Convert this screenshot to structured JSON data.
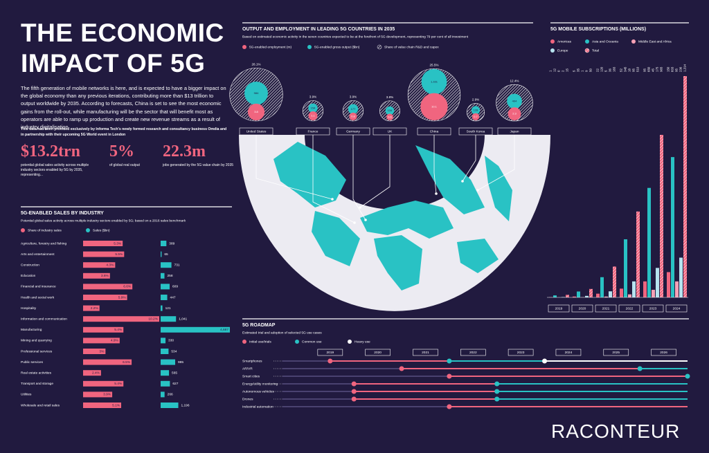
{
  "header": {
    "title": "THE ECONOMIC IMPACT OF 5G",
    "intro": "The fifth generation of mobile networks is here, and is expected to have a bigger impact on the global economy than any previous iterations, contributing more than $13 trillion to output worldwide by 2035. According to forecasts, China is set to see the most economic gains from the roll-out, while manufacturing will be the sector that will benefit most as operators are able to ramp up production and create new revenue streams as a result of industry digitalisation",
    "source": "This data had been provided exclusively by Informa Tech's newly formed research and consultancy business Omdia and in partnership with their upcoming 5G World event in London"
  },
  "stats": [
    {
      "figure": "$13.2trn",
      "label": "potential global sales activity across multiple industry sectors enabled by 5G by 2035, representing..."
    },
    {
      "figure": "5%",
      "label": "of global real output"
    },
    {
      "figure": "22.3m",
      "label": "jobs generated by the 5G value chain by 2035"
    }
  ],
  "chart_data": [
    {
      "type": "bar",
      "orientation": "horizontal",
      "title": "5G-ENABLED SALES BY INDUSTRY",
      "subtitle": "Potential global sales activity across multiple industry sectors enabled by 5G; based on a 2016 sales benchmark",
      "categories": [
        "Agriculture, forestry and fishing",
        "Arts and entertainment",
        "Construction",
        "Education",
        "Financial and insurance",
        "Health and social work",
        "Hospitality",
        "Information and communication",
        "Manufacturing",
        "Mining and quarrying",
        "Professional services",
        "Public services",
        "Real estate activities",
        "Transport and storage",
        "Utilities",
        "Wholesale and retail sales"
      ],
      "series": [
        {
          "name": "Share of industry sales",
          "color": "#f0657f",
          "values": [
            5.3,
            5.5,
            4.3,
            3.6,
            6.6,
            5.9,
            2.2,
            10.2,
            5.4,
            4.9,
            3,
            6.5,
            2.4,
            5.4,
            3.9,
            5.1
          ],
          "value_labels": [
            "5.3%",
            "5.5%",
            "4.3%",
            "3.6%",
            "6.6%",
            "5.9%",
            "2.2%",
            "10.2%",
            "5.4%",
            "4.9%",
            "3%",
            "6.5%",
            "2.4%",
            "5.4%",
            "3.9%",
            "5.1%"
          ]
        },
        {
          "name": "Sales ($bn)",
          "color": "#29c2c4",
          "values": [
            389,
            65,
            731,
            258,
            609,
            447,
            121,
            1041,
            4687,
            330,
            534,
            985,
            565,
            627,
            266,
            1196
          ],
          "value_labels": [
            "389",
            "65",
            "731",
            "258",
            "609",
            "447",
            "121",
            "1,041",
            "4,687",
            "330",
            "534",
            "985",
            "565",
            "627",
            "266",
            "1,196"
          ]
        }
      ]
    },
    {
      "type": "bubble",
      "title": "OUTPUT AND EMPLOYMENT IN LEADING 5G COUNTRIES IN 2035",
      "subtitle": "Based on estimated economic activity in the seven countries expected to be at the forefront of 5G development, representing 79 per cent of all investment",
      "categories": [
        "United States",
        "France",
        "Germany",
        "UK",
        "China",
        "South Korea",
        "Japan"
      ],
      "series": [
        {
          "name": "5G-enabled employment (m)",
          "color": "#f0657f",
          "values": [
            3.8,
            1.1,
            0.8,
            0.6,
            10.1,
            0.7,
            2.3
          ]
        },
        {
          "name": "5G-enabled gross output ($bn)",
          "color": "#29c2c4",
          "values": [
            984,
            154,
            177,
            134,
            1161,
            128,
            404
          ],
          "value_labels": [
            "984",
            "154",
            "177",
            "134",
            "1,161",
            "128",
            "404"
          ]
        },
        {
          "name": "Share of value chain R&D and capex",
          "color": "#ffffff",
          "values": [
            26.1,
            3.9,
            3.9,
            3.8,
            25.5,
            2.9,
            12.4
          ],
          "value_labels": [
            "26.1%",
            "3.9%",
            "3.9%",
            "3.8%",
            "25.5%",
            "2.9%",
            "12.4%"
          ]
        }
      ]
    },
    {
      "type": "bar",
      "orientation": "vertical",
      "title": "5G MOBILE SUBSCRIPTIONS (MILLIONS)",
      "categories": [
        "2019",
        "2020",
        "2021",
        "2022",
        "2023",
        "2024"
      ],
      "series": [
        {
          "name": "Americas",
          "color": "#f0657f",
          "values": [
            1,
            5,
            22,
            52,
            95,
            150
          ]
        },
        {
          "name": "Asia and Oceania",
          "color": "#29c2c4",
          "values": [
            12,
            35,
            120,
            345,
            650,
            833
          ]
        },
        {
          "name": "Middle East and Africa",
          "color": "#f7a1b5",
          "values": [
            0,
            1,
            5,
            18,
            45,
            95
          ]
        },
        {
          "name": "Europe",
          "color": "#b6e3ef",
          "values": [
            2,
            9,
            36,
            95,
            175,
            236
          ]
        },
        {
          "name": "Total",
          "color": "#f5859c",
          "values": [
            15,
            50,
            183,
            510,
            965,
            1314
          ],
          "value_labels": [
            "15",
            "50",
            "183",
            "510",
            "965",
            "1,314"
          ]
        }
      ]
    },
    {
      "type": "timeline",
      "title": "5G ROADMAP",
      "subtitle": "Estimated trial and adoption of selected 5G use cases",
      "categories": [
        "Smartphones",
        "AR/VR",
        "Smart cities",
        "Energy/utility monitoring",
        "Autonomous vehicles",
        "Drones",
        "Industrial automation"
      ],
      "xlim": [
        2018,
        2026.5
      ],
      "xticks": [
        2019,
        2020,
        2021,
        2022,
        2023,
        2024,
        2025,
        2026
      ],
      "series": [
        {
          "name": "Initial use/trials",
          "color": "#f0657f",
          "values": [
            2019,
            2020.5,
            2021.5,
            2019.5,
            2019.5,
            2019.5,
            2021.5
          ]
        },
        {
          "name": "Common use",
          "color": "#29c2c4",
          "values": [
            2021.5,
            2025.5,
            2026.5,
            2022.5,
            2022.5,
            2022.5,
            null
          ]
        },
        {
          "name": "Heavy use",
          "color": "#ffffff",
          "values": [
            2023.5,
            null,
            null,
            null,
            null,
            null,
            null
          ]
        }
      ]
    }
  ],
  "footer": {
    "brand": "RACONTEUR"
  }
}
